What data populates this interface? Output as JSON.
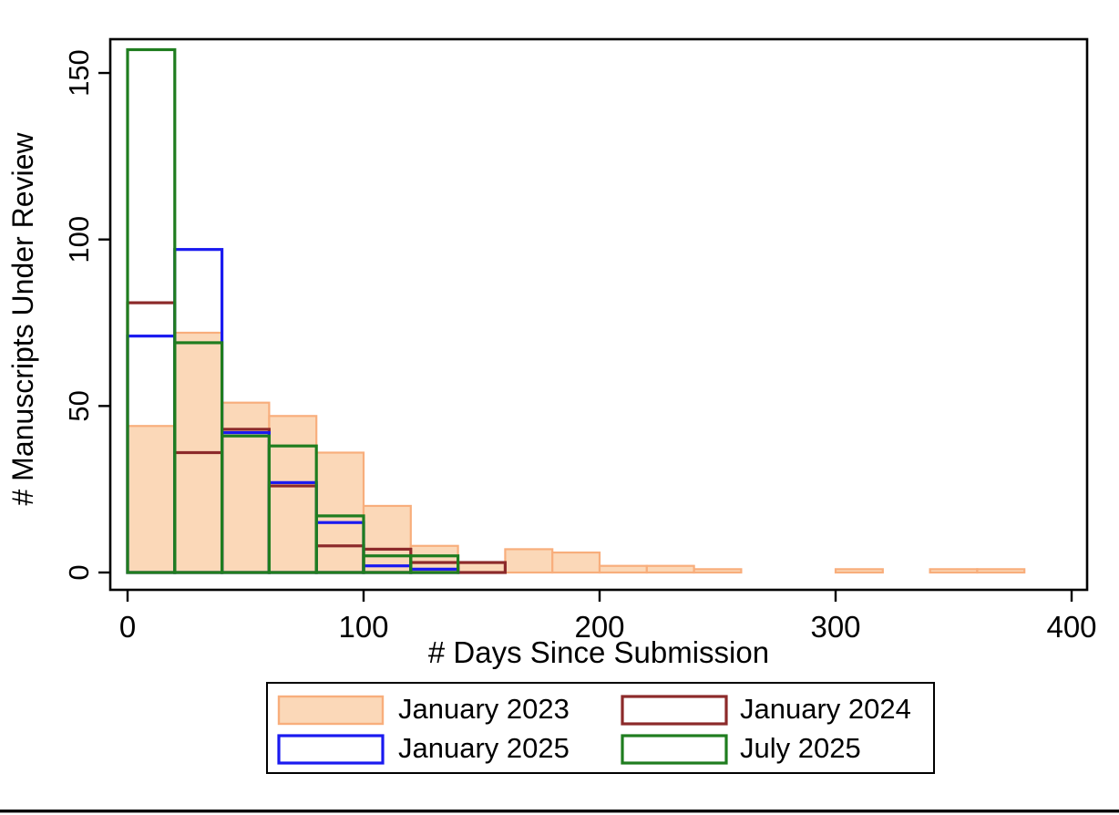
{
  "figure": {
    "background": "#ffffff",
    "border_color": "#000000"
  },
  "chart_data": {
    "type": "histogram-overlay",
    "title": "",
    "xlabel": "# Days Since Submission",
    "ylabel": "# Manuscripts Under Review",
    "bin_width_days": 20,
    "bin_starts": [
      0,
      20,
      40,
      60,
      80,
      100,
      120,
      140,
      160,
      180,
      200,
      220,
      240,
      260,
      280,
      300,
      320,
      340,
      360
    ],
    "x_ticks": [
      0,
      100,
      200,
      300,
      400
    ],
    "y_ticks": [
      0,
      50,
      100,
      150
    ],
    "xlim": [
      -7,
      407
    ],
    "ylim": [
      -5,
      160
    ],
    "grid": "off",
    "legend_position": "bottom-center",
    "series": [
      {
        "name": "January 2023",
        "style": "filled",
        "fill": "#FBD8B8",
        "stroke": "#F8AE7C",
        "values": [
          44,
          72,
          51,
          47,
          36,
          20,
          8,
          3,
          7,
          6,
          2,
          2,
          1,
          0,
          0,
          1,
          0,
          1,
          1
        ]
      },
      {
        "name": "January 2024",
        "style": "outline",
        "stroke": "#8C2A2A",
        "values": [
          81,
          36,
          43,
          26,
          8,
          7,
          3,
          3,
          0,
          0,
          0,
          0,
          0,
          0,
          0,
          0,
          0,
          0,
          0
        ]
      },
      {
        "name": "January 2025",
        "style": "outline",
        "stroke": "#1A1AF0",
        "values": [
          71,
          97,
          42,
          27,
          15,
          2,
          1,
          0,
          0,
          0,
          0,
          0,
          0,
          0,
          0,
          0,
          0,
          0,
          0
        ]
      },
      {
        "name": "July 2025",
        "style": "outline",
        "stroke": "#1F7D1F",
        "values": [
          157,
          69,
          41,
          38,
          17,
          5,
          5,
          0,
          0,
          0,
          0,
          0,
          0,
          0,
          0,
          0,
          0,
          0,
          0
        ]
      }
    ]
  }
}
